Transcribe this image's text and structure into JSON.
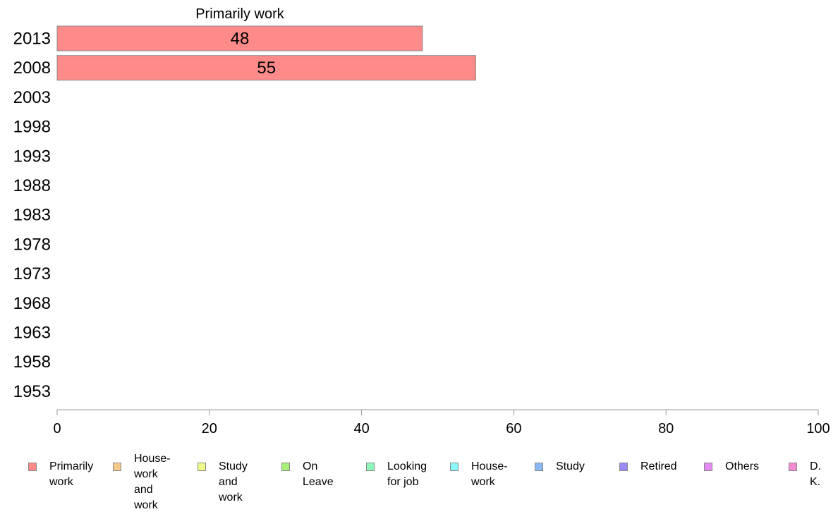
{
  "chart_data": {
    "type": "bar",
    "orientation": "horizontal",
    "title": "Primarily work",
    "categories": [
      "2013",
      "2008",
      "2003",
      "1998",
      "1993",
      "1988",
      "1983",
      "1978",
      "1973",
      "1968",
      "1963",
      "1958",
      "1953"
    ],
    "series": [
      {
        "name": "Primarily work",
        "color": "#ff8a8a",
        "values": [
          48,
          55,
          null,
          null,
          null,
          null,
          null,
          null,
          null,
          null,
          null,
          null,
          null
        ]
      }
    ],
    "data_labels": [
      "48",
      "55"
    ],
    "xlim": [
      0,
      100
    ],
    "x_ticks": [
      "0",
      "20",
      "40",
      "60",
      "80",
      "100"
    ],
    "grid": false,
    "legend_placement": "bottom",
    "legend": [
      {
        "label": "Primarily\nwork",
        "color": "#ff8a8a"
      },
      {
        "label": "House-\nwork\nand work",
        "color": "#f5c98a"
      },
      {
        "label": "Study\nand work",
        "color": "#eefc8a"
      },
      {
        "label": "On\nLeave",
        "color": "#a8f07a"
      },
      {
        "label": "Looking\nfor job",
        "color": "#8ff5b8"
      },
      {
        "label": "House-\nwork",
        "color": "#8af8f8"
      },
      {
        "label": "Study",
        "color": "#8ab8f5"
      },
      {
        "label": "Retired",
        "color": "#9a8af5"
      },
      {
        "label": "Others",
        "color": "#e88af5"
      },
      {
        "label": "D. K.",
        "color": "#f58ad0"
      }
    ]
  }
}
